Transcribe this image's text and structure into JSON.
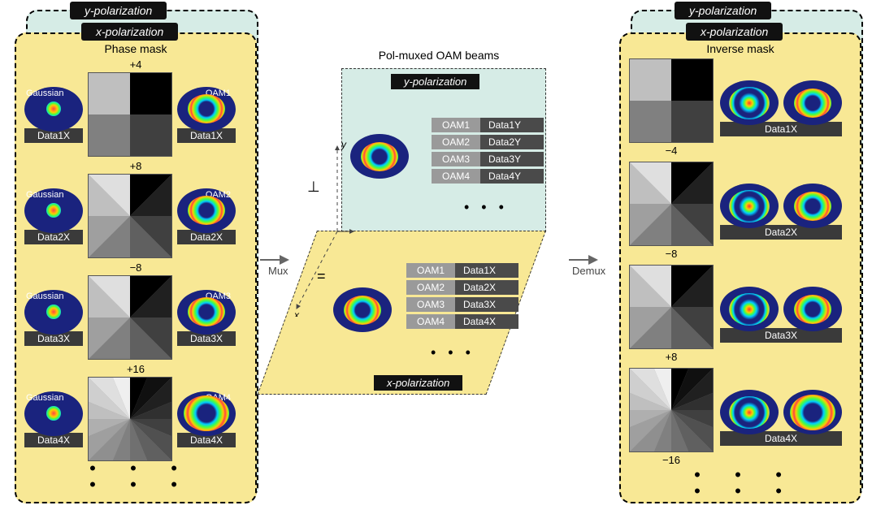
{
  "labels": {
    "ypol": "y-polarization",
    "xpol": "x-polarization",
    "phasemask": "Phase mask",
    "invmask": "Inverse mask",
    "gaussian": "Gaussian",
    "mux": "Mux",
    "demux": "Demux",
    "centerTitle": "Pol-muxed OAM beams",
    "perp": "⊥",
    "eq": "=",
    "dots": "•  •  •"
  },
  "left": {
    "charges": [
      "+4",
      "+8",
      "−8",
      "+16"
    ],
    "oamLabels": [
      "OAM1",
      "OAM2",
      "OAM3",
      "OAM4"
    ],
    "data": [
      "Data1X",
      "Data2X",
      "Data3X",
      "Data4X"
    ]
  },
  "right": {
    "charges": [
      "−4",
      "−8",
      "+8",
      "−16"
    ],
    "data": [
      "Data1X",
      "Data2X",
      "Data3X",
      "Data4X"
    ]
  },
  "centerY": {
    "items": [
      {
        "k": "OAM1",
        "v": "Data1Y"
      },
      {
        "k": "OAM2",
        "v": "Data2Y"
      },
      {
        "k": "OAM3",
        "v": "Data3Y"
      },
      {
        "k": "OAM4",
        "v": "Data4Y"
      }
    ]
  },
  "centerX": {
    "items": [
      {
        "k": "OAM1",
        "v": "Data1X"
      },
      {
        "k": "OAM2",
        "v": "Data2X"
      },
      {
        "k": "OAM3",
        "v": "Data3X"
      },
      {
        "k": "OAM4",
        "v": "Data4X"
      }
    ]
  },
  "colors": {
    "panelBg": "#f8e895",
    "shadowBg": "#d6ece6",
    "tabBg": "#111111",
    "dataBg": "#3a3a3a",
    "oamKeyBg": "#9a9a9a",
    "oamValBg": "#4a4a4a",
    "beamNavy": "#1a237e"
  },
  "style": {
    "type": "infographic",
    "fontFamily": "Arial",
    "titleFontsize": 14,
    "labelFontsize": 12,
    "sectorCounts": [
      4,
      8,
      8,
      16
    ],
    "beamSize": [
      72,
      55
    ],
    "maskSize": 104
  }
}
